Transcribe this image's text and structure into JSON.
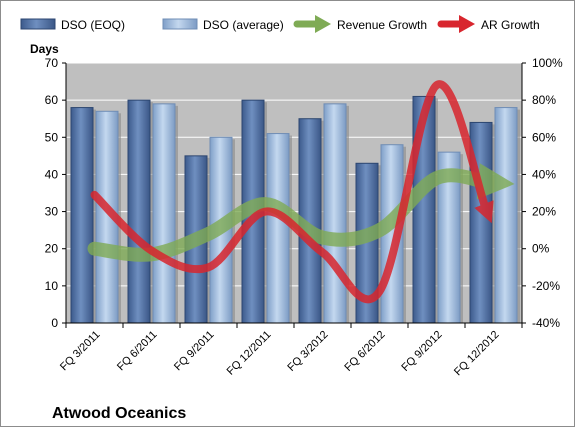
{
  "chart_data": {
    "type": "bar",
    "title": "",
    "company_label": "Atwood Oceanics",
    "categories": [
      "FQ 3/2011",
      "FQ 6/2011",
      "FQ 9/2011",
      "FQ 12/2011",
      "FQ 3/2012",
      "FQ 6/2012",
      "FQ 9/2012",
      "FQ 12/2012"
    ],
    "y_left": {
      "title": "Days",
      "ylim": [
        0,
        70
      ],
      "ticks": [
        "0",
        "10",
        "20",
        "30",
        "40",
        "50",
        "60",
        "70"
      ]
    },
    "y_right": {
      "ylim": [
        -40,
        100
      ],
      "ticks": [
        "-40%",
        "-20%",
        "0%",
        "20%",
        "40%",
        "60%",
        "80%",
        "100%"
      ]
    },
    "series": [
      {
        "name": "DSO (EOQ)",
        "type": "bar",
        "axis": "left",
        "color": "#4f6fa0",
        "values": [
          58,
          60,
          45,
          60,
          55,
          43,
          61,
          54
        ]
      },
      {
        "name": "DSO (average)",
        "type": "bar",
        "axis": "left",
        "color": "#9fbde0",
        "values": [
          57,
          59,
          50,
          51,
          59,
          48,
          46,
          58
        ]
      },
      {
        "name": "Revenue Growth",
        "type": "line",
        "axis": "right",
        "color": "#7fab55",
        "values": [
          0,
          -3,
          8,
          24,
          6,
          10,
          38,
          36
        ]
      },
      {
        "name": "AR Growth",
        "type": "line",
        "axis": "right",
        "color": "#d8262e",
        "values": [
          29,
          -1,
          -10,
          20,
          -2,
          -23,
          88,
          22
        ]
      }
    ],
    "grid": true,
    "legend_position": "top"
  }
}
